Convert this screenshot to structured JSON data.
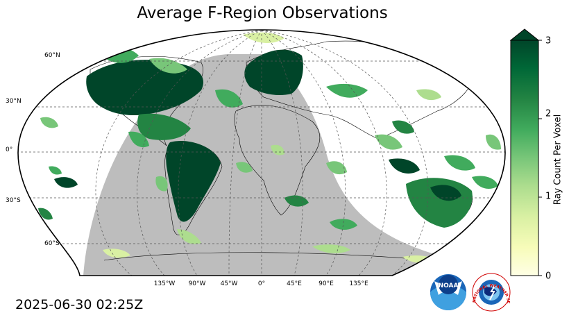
{
  "title": "Average F-Region Observations",
  "timestamp": "2025-06-30 02:25Z",
  "colorbar": {
    "label": "Ray Count Per Voxel",
    "ticks": [
      "0",
      "1",
      "2",
      "3"
    ],
    "min": 0,
    "max": 3,
    "extend": "max",
    "colormap": "YlGn",
    "colors": [
      "#ffffe5",
      "#f7fcb9",
      "#d9f0a3",
      "#addd8e",
      "#78c679",
      "#41ab5d",
      "#238443",
      "#006837",
      "#004529"
    ]
  },
  "map": {
    "projection": "Robinson",
    "night_shading_color": "#bdbdbd",
    "lat_labels": [
      "60°N",
      "30°N",
      "0°",
      "30°S",
      "60°S"
    ],
    "lon_labels": [
      "135°W",
      "90°W",
      "45°W",
      "0°",
      "45°E",
      "90°E",
      "135°E"
    ]
  },
  "logos": {
    "noaa": {
      "text": "NOAA",
      "icon": "noaa-logo-icon"
    },
    "nws": {
      "text": "NATIONAL WEATHER SERVICE",
      "icon": "nws-logo-icon"
    }
  }
}
